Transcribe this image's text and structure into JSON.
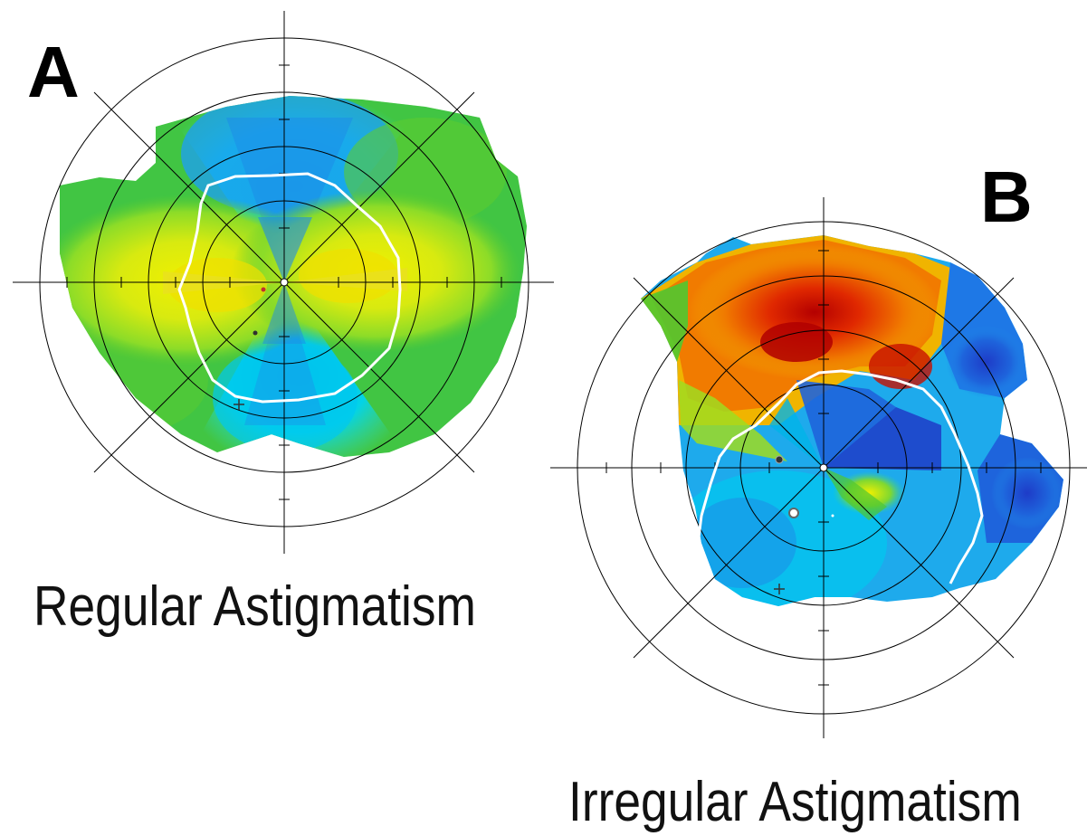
{
  "figure": {
    "panel_a": {
      "label": "A",
      "caption": "Regular Astigmatism"
    },
    "panel_b": {
      "label": "B",
      "caption": "Irregular Astigmatism"
    }
  },
  "colors": {
    "hot": "#c80000",
    "orange": "#f07800",
    "yellow": "#f0f000",
    "green": "#50c830",
    "cyan": "#00d8f0",
    "blue": "#1e78e6",
    "deep_blue": "#1e3cc8",
    "contour": "#ffffff",
    "grid": "#000000"
  }
}
